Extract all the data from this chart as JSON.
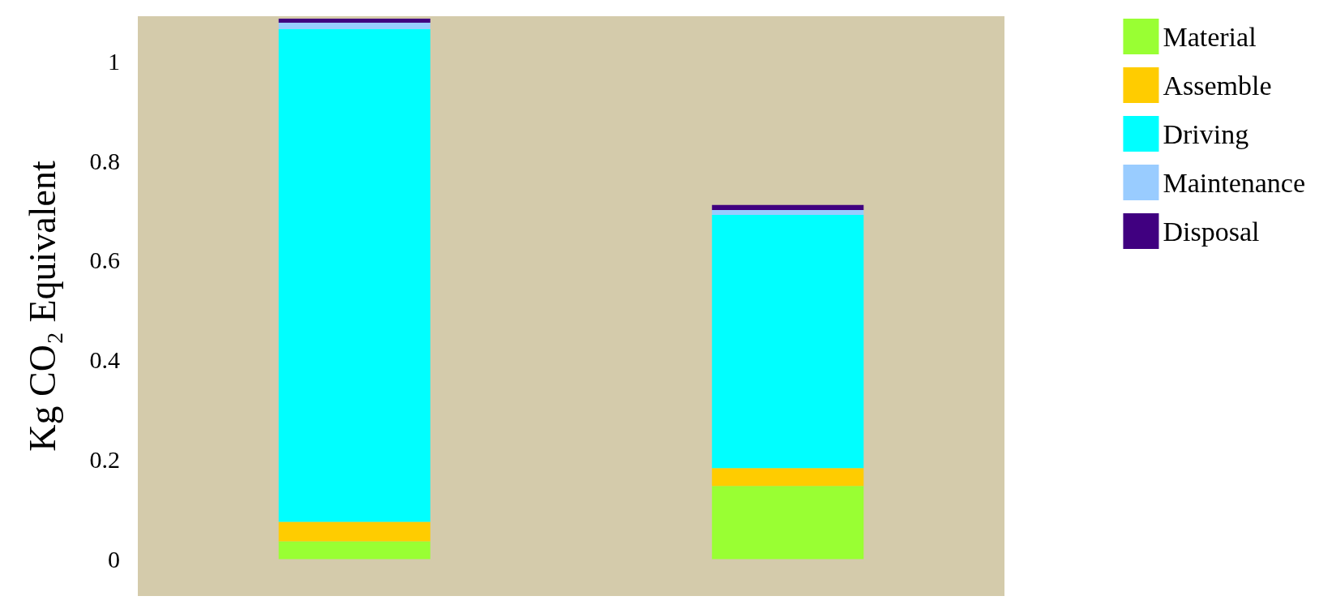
{
  "chart_data": {
    "type": "bar",
    "stacked": true,
    "ylabel": "Kg CO₂ Equivalent",
    "categories": [
      null,
      null
    ],
    "series": [
      {
        "name": "Material",
        "color": "#99ff33",
        "values": [
          0.036,
          0.147
        ]
      },
      {
        "name": "Assemble",
        "color": "#ffcc00",
        "values": [
          0.039,
          0.036
        ]
      },
      {
        "name": "Driving",
        "color": "#00ffff",
        "values": [
          0.989,
          0.508
        ]
      },
      {
        "name": "Maintenance",
        "color": "#99ccff",
        "values": [
          0.013,
          0.01
        ]
      },
      {
        "name": "Disposal",
        "color": "#400080",
        "values": [
          0.008,
          0.01
        ]
      }
    ],
    "ylim": [
      -0.074,
      1.09
    ],
    "yticks": [
      0,
      0.2,
      0.4,
      0.6,
      0.8,
      1
    ],
    "grid": false,
    "legend": "top right"
  }
}
